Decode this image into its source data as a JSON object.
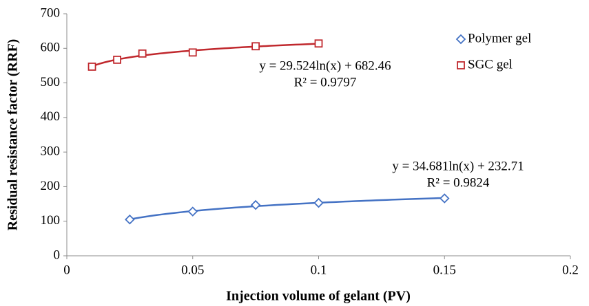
{
  "chart_data": {
    "type": "scatter",
    "x_label": "Injection volume of gelant (PV)",
    "y_label": "Residual resistance factor (RRF)",
    "xlim": [
      0,
      0.2
    ],
    "xticks": [
      0,
      0.05,
      0.1,
      0.15,
      0.2
    ],
    "ylim": [
      0,
      700
    ],
    "yticks": [
      0,
      100,
      200,
      300,
      400,
      500,
      600,
      700
    ],
    "grid": false,
    "legend": "upper right",
    "trendline": "logarithmic",
    "series": [
      {
        "name": "Polymer gel",
        "color": "#4472c4",
        "marker": "diamond",
        "x": [
          0.025,
          0.05,
          0.075,
          0.1,
          0.15
        ],
        "values": [
          105,
          128,
          147,
          153,
          166
        ],
        "equation": "y = 34.681ln(x) + 232.71",
        "r_squared": "R² = 0.9824"
      },
      {
        "name": "SGC gel",
        "color": "#c0282d",
        "marker": "square",
        "x": [
          0.01,
          0.02,
          0.03,
          0.05,
          0.075,
          0.1
        ],
        "values": [
          547,
          567,
          585,
          588,
          606,
          614
        ],
        "equation": "y = 29.524ln(x) + 682.46",
        "r_squared": "R² = 0.9797"
      }
    ]
  }
}
